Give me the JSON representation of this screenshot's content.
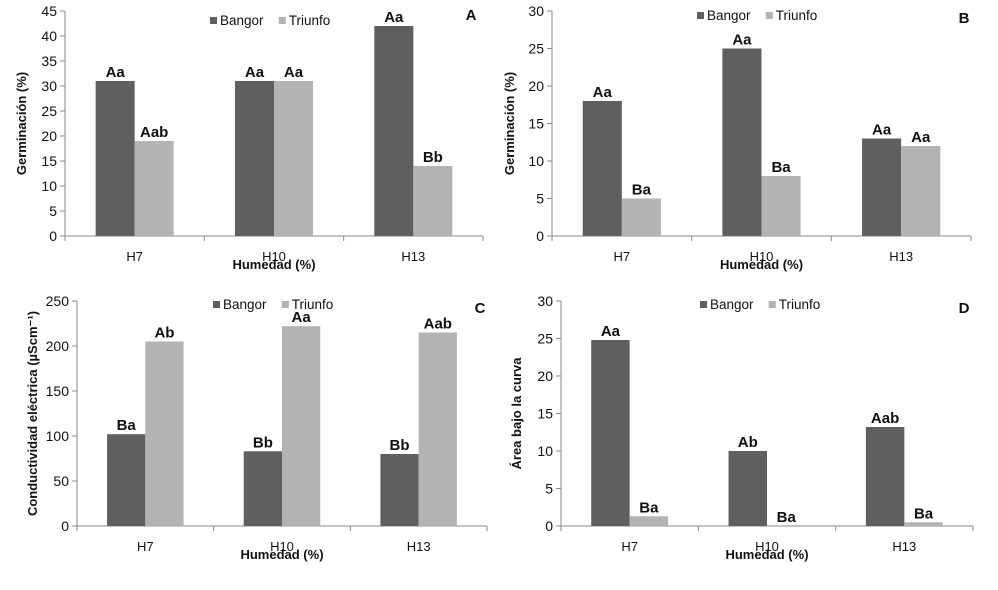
{
  "colors": {
    "Bangor": "#5f5f5f",
    "Triunfo": "#b3b3b3"
  },
  "chart_data": [
    {
      "panel": "A",
      "type": "bar",
      "title": "",
      "xlabel": "Humedad (%)",
      "ylabel": "Germinación (%)",
      "ylim": [
        0,
        45
      ],
      "yticks": [
        0,
        5,
        10,
        15,
        20,
        25,
        30,
        35,
        40,
        45
      ],
      "categories": [
        "H7",
        "H10",
        "H13"
      ],
      "legend": {
        "entries": [
          "Bangor",
          "Triunfo"
        ],
        "position": "top-center"
      },
      "grid": false,
      "series": [
        {
          "name": "Bangor",
          "values": [
            31,
            31,
            42
          ],
          "labels": [
            "Aa",
            "Aa",
            "Aa"
          ]
        },
        {
          "name": "Triunfo",
          "values": [
            19,
            31,
            14
          ],
          "labels": [
            "Aab",
            "Aa",
            "Bb"
          ]
        }
      ]
    },
    {
      "panel": "B",
      "type": "bar",
      "title": "",
      "xlabel": "Humedad (%)",
      "ylabel": "Germinación (%)",
      "ylim": [
        0,
        30
      ],
      "yticks": [
        0,
        5,
        10,
        15,
        20,
        25,
        30
      ],
      "categories": [
        "H7",
        "H10",
        "H13"
      ],
      "legend": {
        "entries": [
          "Bangor",
          "Triunfo"
        ],
        "position": "top-center"
      },
      "grid": false,
      "series": [
        {
          "name": "Bangor",
          "values": [
            18,
            25,
            13
          ],
          "labels": [
            "Aa",
            "Aa",
            "Aa"
          ]
        },
        {
          "name": "Triunfo",
          "values": [
            5,
            8,
            12
          ],
          "labels": [
            "Ba",
            "Ba",
            "Aa"
          ]
        }
      ]
    },
    {
      "panel": "C",
      "type": "bar",
      "title": "",
      "xlabel": "Humedad (%)",
      "ylabel": "Conductividad eléctrica  (µScm⁻¹)",
      "ylim": [
        0,
        250
      ],
      "yticks": [
        0,
        50,
        100,
        150,
        200,
        250
      ],
      "categories": [
        "H7",
        "H10",
        "H13"
      ],
      "legend": {
        "entries": [
          "Bangor",
          "Triunfo"
        ],
        "position": "top-center"
      },
      "grid": false,
      "series": [
        {
          "name": "Bangor",
          "values": [
            102,
            83,
            80
          ],
          "labels": [
            "Ba",
            "Bb",
            "Bb"
          ]
        },
        {
          "name": "Triunfo",
          "values": [
            205,
            222,
            215
          ],
          "labels": [
            "Ab",
            "Aa",
            "Aab"
          ]
        }
      ]
    },
    {
      "panel": "D",
      "type": "bar",
      "title": "",
      "xlabel": "Humedad (%)",
      "ylabel": "Área bajo la curva",
      "ylim": [
        0,
        30
      ],
      "yticks": [
        0,
        5,
        10,
        15,
        20,
        25,
        30
      ],
      "categories": [
        "H7",
        "H10",
        "H13"
      ],
      "legend": {
        "entries": [
          "Bangor",
          "Triunfo"
        ],
        "position": "top-center"
      },
      "grid": false,
      "series": [
        {
          "name": "Bangor",
          "values": [
            24.8,
            10.0,
            13.2
          ],
          "labels": [
            "Aa",
            "Ab",
            "Aab"
          ]
        },
        {
          "name": "Triunfo",
          "values": [
            1.3,
            0.0,
            0.5
          ],
          "labels": [
            "Ba",
            "Ba",
            "Ba"
          ]
        }
      ]
    }
  ]
}
